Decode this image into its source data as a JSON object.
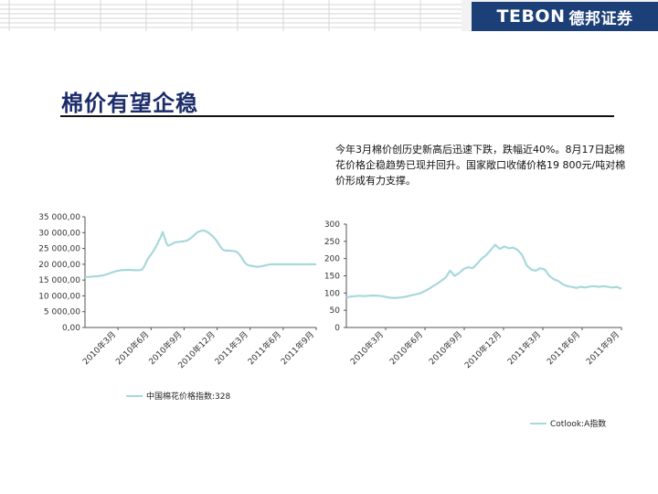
{
  "header": {
    "logo_text": "TEBON",
    "logo_cn": "德邦证券",
    "brand_color": "#1c3f78"
  },
  "slide": {
    "title": "棉价有望企稳",
    "note": "今年3月棉价创历史新高后迅速下跌，跌幅近40%。8月17日起棉花价格企稳趋势已现并回升。国家敞口收储价格19 800元/吨对棉价形成有力支撑。"
  },
  "chart_data": [
    {
      "type": "line",
      "color": "#a8d8dc",
      "y_ticks": [
        "35 000,00",
        "30 000,00",
        "25 000,00",
        "20 000,00",
        "15 000,00",
        "10 000,00",
        "5 000,00",
        "0,00"
      ],
      "ylim": [
        0,
        35000
      ],
      "x_ticks": [
        "2010年3月",
        "2010年6月",
        "2010年9月",
        "2010年12月",
        "2011年3月",
        "2011年6月",
        "2011年9月"
      ],
      "legend": "中国棉花价格指数:328",
      "x": [
        0,
        4,
        8,
        12,
        16,
        20,
        24,
        28,
        32,
        36,
        40,
        44,
        48,
        51,
        54,
        57,
        60,
        62,
        64,
        66,
        68,
        70,
        72,
        74,
        76,
        78,
        80,
        82,
        84,
        86,
        88,
        90,
        92,
        95,
        98,
        101,
        104,
        107,
        110,
        113,
        116,
        119,
        122,
        124,
        126,
        128,
        130,
        132,
        134,
        136,
        138,
        140,
        142,
        144,
        146,
        148,
        150,
        152,
        154,
        156,
        158,
        160,
        162,
        164,
        166,
        168,
        170,
        172,
        174,
        176,
        178,
        180,
        182,
        184,
        186,
        188,
        190,
        192,
        194,
        196,
        198,
        200,
        202,
        204,
        206,
        208,
        210,
        212,
        214,
        216,
        218,
        220,
        222,
        224,
        226,
        228,
        230,
        232,
        234,
        236,
        238,
        240,
        242,
        244,
        246,
        248,
        250,
        252,
        254,
        256
      ],
      "values": [
        15900,
        16000,
        16100,
        16200,
        16300,
        16500,
        16800,
        17200,
        17600,
        17900,
        18100,
        18200,
        18250,
        18200,
        18150,
        18100,
        18100,
        18200,
        18600,
        19500,
        20800,
        21900,
        22700,
        23400,
        24300,
        25300,
        26400,
        27500,
        28700,
        30200,
        28600,
        26800,
        25900,
        26200,
        26700,
        27000,
        27100,
        27200,
        27300,
        27500,
        28000,
        28700,
        29500,
        30000,
        30300,
        30500,
        30700,
        30600,
        30400,
        30100,
        29700,
        29200,
        28700,
        28000,
        27300,
        26400,
        25500,
        24800,
        24400,
        24300,
        24300,
        24300,
        24200,
        24200,
        24100,
        23900,
        23400,
        22700,
        21800,
        20900,
        20200,
        19800,
        19600,
        19500,
        19400,
        19300,
        19200,
        19200,
        19300,
        19400,
        19500,
        19700,
        19800,
        19900,
        20000,
        20000,
        20000,
        20000,
        20000,
        20000,
        20000,
        20000,
        20000,
        20000,
        20000,
        20000,
        20000,
        20000,
        20000,
        20000,
        20000,
        20000,
        20000,
        20000,
        20000,
        20000,
        20000,
        20000,
        20000,
        20000
      ]
    },
    {
      "type": "line",
      "color": "#a8d8dc",
      "y_ticks": [
        "300",
        "250",
        "200",
        "150",
        "100",
        "50",
        "0"
      ],
      "ylim": [
        0,
        300
      ],
      "x_ticks": [
        "2010年3月",
        "2010年6月",
        "2010年9月",
        "2010年12月",
        "2011年3月",
        "2011年6月",
        "2011年9月"
      ],
      "legend": "Cotlook:A指数",
      "x": [
        0,
        5,
        10,
        15,
        20,
        25,
        30,
        35,
        40,
        45,
        50,
        55,
        60,
        65,
        70,
        75,
        80,
        85,
        90,
        95,
        100,
        105,
        110,
        115,
        120,
        125,
        130,
        135,
        140,
        145,
        150,
        155,
        160,
        165,
        170,
        175,
        180,
        185,
        190,
        195,
        200,
        205,
        210,
        215,
        220,
        225,
        230,
        235,
        240,
        245,
        250,
        255,
        260,
        265,
        270,
        275,
        280,
        285,
        290,
        295,
        300,
        305
      ],
      "values": [
        87,
        90,
        91,
        92,
        91,
        92,
        93,
        92,
        91,
        88,
        86,
        86,
        87,
        89,
        92,
        95,
        98,
        103,
        110,
        118,
        126,
        135,
        145,
        165,
        150,
        158,
        170,
        175,
        172,
        185,
        200,
        210,
        225,
        240,
        228,
        235,
        230,
        232,
        225,
        210,
        180,
        168,
        165,
        172,
        168,
        150,
        140,
        135,
        125,
        120,
        118,
        115,
        118,
        116,
        119,
        120,
        118,
        120,
        118,
        116,
        118,
        112
      ]
    }
  ]
}
